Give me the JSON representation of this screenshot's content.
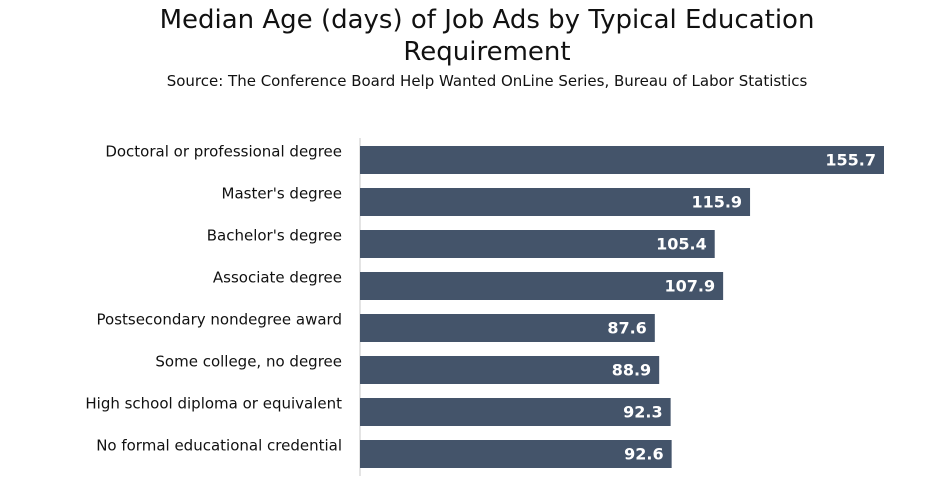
{
  "chart_data": {
    "type": "bar",
    "orientation": "horizontal",
    "title": "Median Age (days) of Job Ads by Typical Education Requirement",
    "subtitle": "Source: The Conference Board Help Wanted OnLine Series, Bureau of Labor Statistics",
    "categories": [
      "Doctoral or professional degree",
      "Master's degree",
      "Bachelor's degree",
      "Associate degree",
      "Postsecondary nondegree award",
      "Some college, no degree",
      "High school diploma or equivalent",
      "No formal educational credential"
    ],
    "values": [
      155.7,
      115.9,
      105.4,
      107.9,
      87.6,
      88.9,
      92.3,
      92.6
    ],
    "xlim": [
      0,
      155.7
    ],
    "bar_color": "#44546a",
    "data_labels": true,
    "grid": false,
    "legend": "none"
  }
}
